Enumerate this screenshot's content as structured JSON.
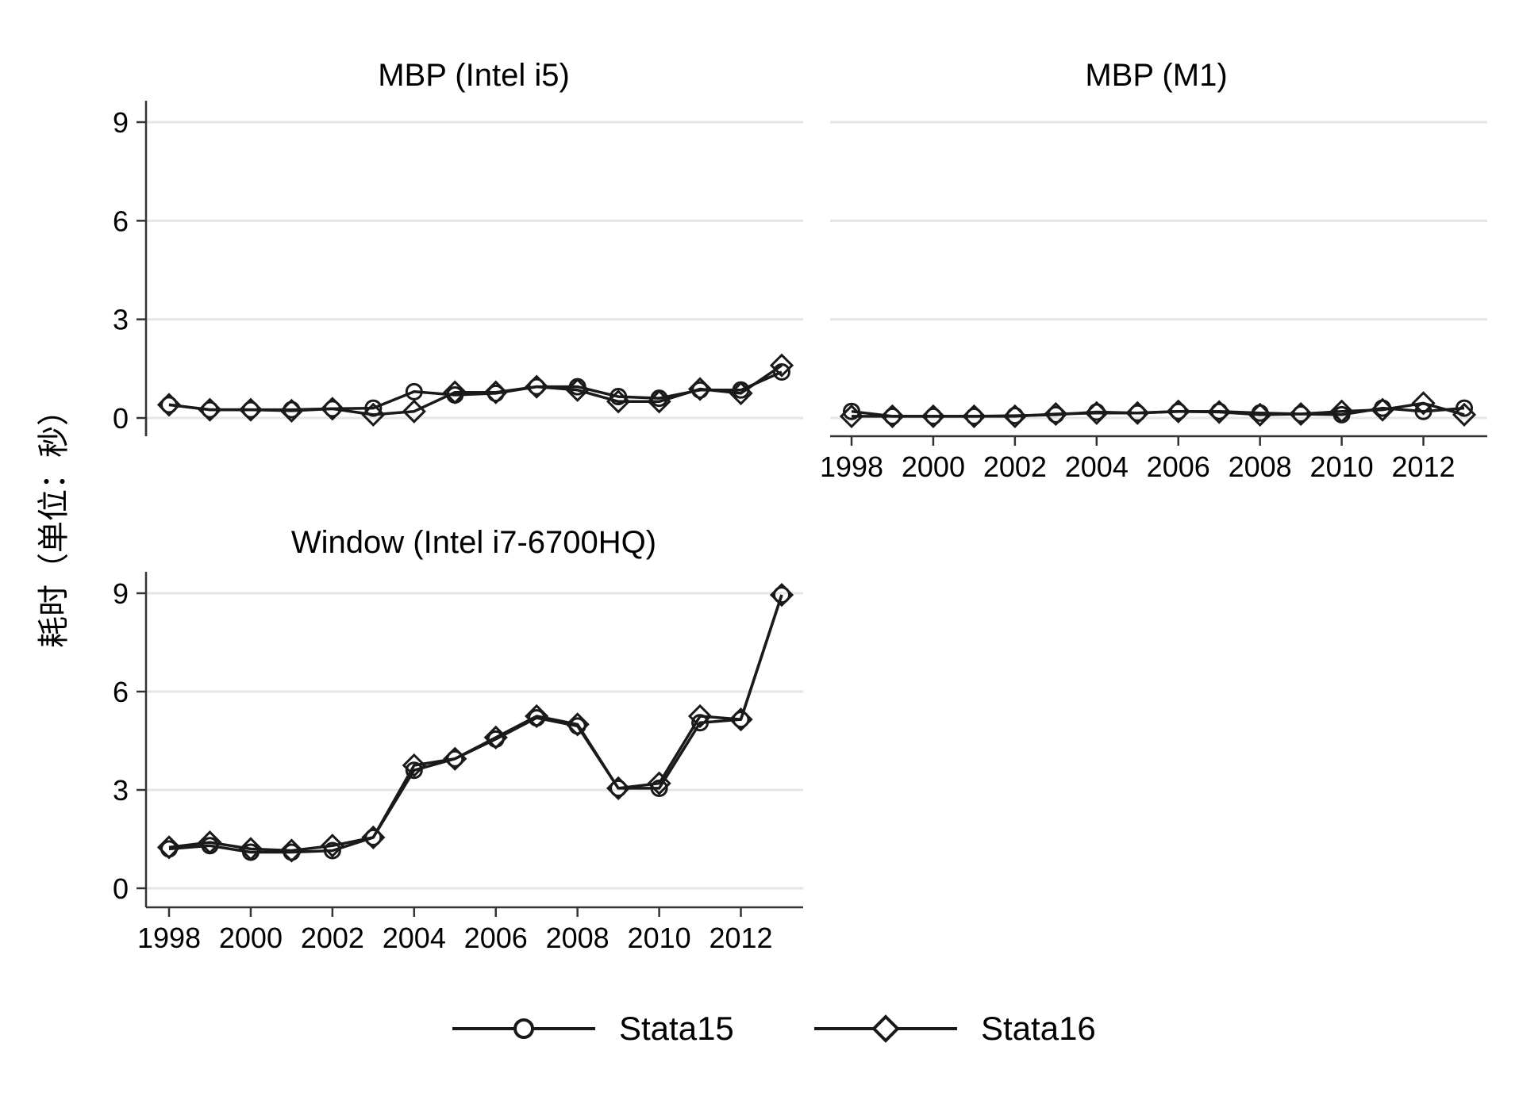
{
  "chart_data": {
    "type": "line",
    "ylabel": "耗时（单位：秒）",
    "ylim": [
      0,
      9
    ],
    "yticks": [
      0,
      3,
      6,
      9
    ],
    "x": [
      1998,
      1999,
      2000,
      2001,
      2002,
      2003,
      2004,
      2005,
      2006,
      2007,
      2008,
      2009,
      2010,
      2011,
      2012,
      2013
    ],
    "xticks": [
      1998,
      2000,
      2002,
      2004,
      2006,
      2008,
      2010,
      2012
    ],
    "legend": {
      "placement": "bottom",
      "entries": [
        "Stata15",
        "Stata16"
      ]
    },
    "grid": true,
    "panels": [
      {
        "title": "MBP (Intel i5)",
        "series": [
          {
            "name": "Stata15",
            "marker": "circle",
            "values": [
              0.4,
              0.25,
              0.25,
              0.25,
              0.28,
              0.3,
              0.8,
              0.7,
              0.75,
              0.95,
              0.95,
              0.65,
              0.6,
              0.85,
              0.85,
              1.4
            ]
          },
          {
            "name": "Stata16",
            "marker": "diamond",
            "values": [
              0.4,
              0.25,
              0.25,
              0.22,
              0.28,
              0.1,
              0.2,
              0.78,
              0.78,
              0.95,
              0.85,
              0.5,
              0.5,
              0.88,
              0.75,
              1.6
            ]
          }
        ]
      },
      {
        "title": "MBP (M1)",
        "series": [
          {
            "name": "Stata15",
            "marker": "circle",
            "values": [
              0.2,
              0.05,
              0.05,
              0.05,
              0.07,
              0.1,
              0.18,
              0.15,
              0.2,
              0.2,
              0.15,
              0.12,
              0.1,
              0.3,
              0.2,
              0.3
            ]
          },
          {
            "name": "Stata16",
            "marker": "diamond",
            "values": [
              0.05,
              0.05,
              0.05,
              0.05,
              0.05,
              0.12,
              0.15,
              0.15,
              0.2,
              0.18,
              0.1,
              0.12,
              0.2,
              0.25,
              0.45,
              0.1
            ]
          }
        ]
      },
      {
        "title": "Window (Intel i7-6700HQ)",
        "series": [
          {
            "name": "Stata15",
            "marker": "circle",
            "values": [
              1.2,
              1.3,
              1.1,
              1.1,
              1.15,
              1.55,
              3.6,
              3.95,
              4.55,
              5.2,
              4.95,
              3.05,
              3.05,
              5.05,
              5.15,
              8.95
            ]
          },
          {
            "name": "Stata16",
            "marker": "diamond",
            "values": [
              1.25,
              1.4,
              1.2,
              1.15,
              1.3,
              1.55,
              3.75,
              3.95,
              4.6,
              5.25,
              5.0,
              3.05,
              3.2,
              5.25,
              5.15,
              8.95
            ]
          }
        ]
      }
    ]
  },
  "colors": {
    "line": "#1a1a1a",
    "grid": "#e6e6e6",
    "axis": "#333333"
  }
}
